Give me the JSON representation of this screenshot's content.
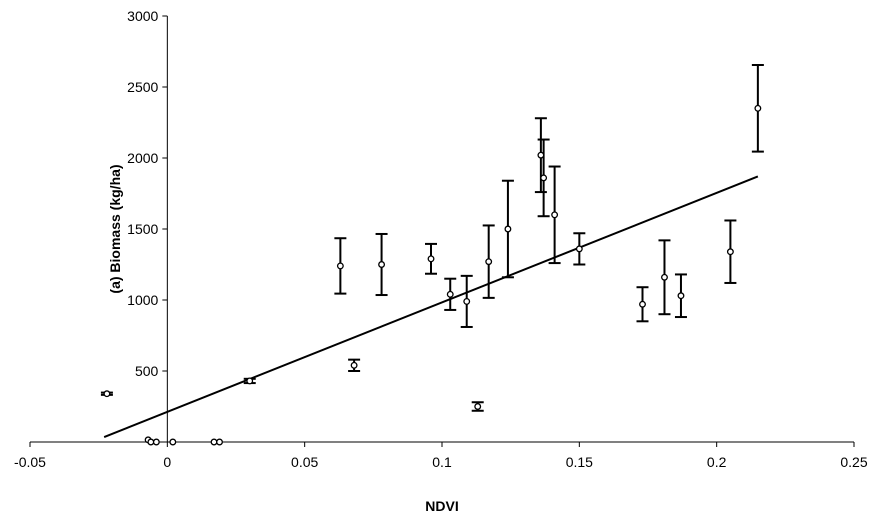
{
  "chart_data": {
    "type": "scatter",
    "title": "",
    "xlabel": "NDVI",
    "ylabel": "(a) Biomass (kg/ha)",
    "xlim": [
      -0.05,
      0.25
    ],
    "ylim": [
      0,
      3000
    ],
    "x_ticks": [
      -0.05,
      0,
      0.05,
      0.1,
      0.15,
      0.2,
      0.25
    ],
    "x_tick_labels": [
      "-0.05",
      "0",
      "0.05",
      "0.1",
      "0.15",
      "0.2",
      "0.25"
    ],
    "y_ticks": [
      500,
      1000,
      1500,
      2000,
      2500,
      3000
    ],
    "y_tick_labels": [
      "500",
      "1000",
      "1500",
      "2000",
      "2500",
      "3000"
    ],
    "grid": false,
    "legend": "none",
    "colors": {
      "points": "#000000",
      "line": "#000000"
    },
    "points": [
      {
        "x": -0.022,
        "y": 340,
        "err": 8
      },
      {
        "x": -0.007,
        "y": 15,
        "err": 0
      },
      {
        "x": -0.006,
        "y": 0,
        "err": 0
      },
      {
        "x": -0.004,
        "y": 0,
        "err": 0
      },
      {
        "x": 0.002,
        "y": 0,
        "err": 0
      },
      {
        "x": 0.017,
        "y": 0,
        "err": 0
      },
      {
        "x": 0.019,
        "y": 0,
        "err": 0
      },
      {
        "x": 0.03,
        "y": 430,
        "err": 15
      },
      {
        "x": 0.063,
        "y": 1240,
        "err": 195
      },
      {
        "x": 0.068,
        "y": 540,
        "err": 40
      },
      {
        "x": 0.078,
        "y": 1250,
        "err": 215
      },
      {
        "x": 0.096,
        "y": 1290,
        "err": 105
      },
      {
        "x": 0.103,
        "y": 1040,
        "err": 110
      },
      {
        "x": 0.109,
        "y": 990,
        "err": 180
      },
      {
        "x": 0.113,
        "y": 250,
        "err": 30
      },
      {
        "x": 0.117,
        "y": 1270,
        "err": 255
      },
      {
        "x": 0.124,
        "y": 1500,
        "err": 340
      },
      {
        "x": 0.136,
        "y": 2020,
        "err": 260
      },
      {
        "x": 0.137,
        "y": 1860,
        "err": 270
      },
      {
        "x": 0.141,
        "y": 1600,
        "err": 340
      },
      {
        "x": 0.15,
        "y": 1360,
        "err": 110
      },
      {
        "x": 0.173,
        "y": 970,
        "err": 120
      },
      {
        "x": 0.181,
        "y": 1160,
        "err": 260
      },
      {
        "x": 0.187,
        "y": 1030,
        "err": 150
      },
      {
        "x": 0.205,
        "y": 1340,
        "err": 220
      },
      {
        "x": 0.215,
        "y": 2350,
        "err": 305
      }
    ],
    "trendline": {
      "x": [
        -0.023,
        0.215
      ],
      "y": [
        35,
        1870
      ]
    }
  }
}
